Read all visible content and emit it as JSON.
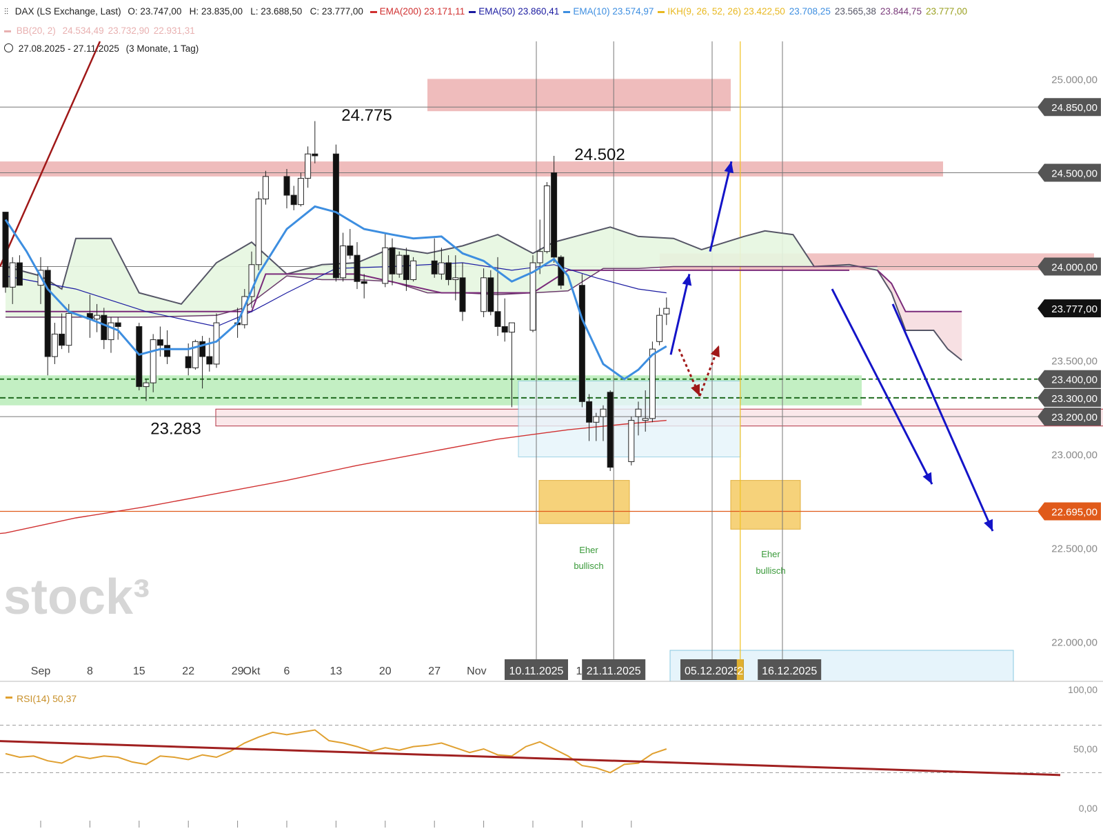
{
  "header": {
    "instrument": "DAX (LS Exchange, Last)",
    "ohlc": "O: 23.747,00   H: 23.835,00   L: 23.688,50   C: 23.777,00",
    "indicators": [
      {
        "label": "EMA(200)",
        "value": "23.171,11",
        "color": "#d03030"
      },
      {
        "label": "EMA(50)",
        "value": "23.860,41",
        "color": "#1a1aa0"
      },
      {
        "label": "EMA(10)",
        "value": "23.574,97",
        "color": "#3d8ee0"
      },
      {
        "label": "IKH(9, 26, 52, 26)",
        "value": "23.422,50",
        "color": "#e8b820"
      }
    ],
    "ikh_extra": [
      "23.708,25",
      "23.565,38",
      "23.844,75",
      "23.777,00"
    ],
    "ikh_extra_colors": [
      "#3d8ee0",
      "#555566",
      "#7a3a7a",
      "#9aa020"
    ],
    "bb_label": "BB(20, 2)",
    "bb_values": [
      "24.534,49",
      "23.732,90",
      "22.931,31"
    ],
    "bb_color": "#e8b0b0",
    "period": "27.08.2025 - 27.11.2025",
    "period_note": "(3 Monate, 1 Tag)"
  },
  "colors": {
    "candle_up_fill": "#ffffff",
    "candle_down_fill": "#111111",
    "ema10": "#3d8ee0",
    "ema50": "#1a1aa0",
    "ema200": "#d03030",
    "resistance_zone": "#efbcbc",
    "support_zone": "#b8ecb8",
    "target_zone": "#f6d27a",
    "fib_box": "#e6f4fb",
    "arrow_blue": "#1414c8",
    "arrow_red": "#a01818",
    "rsi_line": "#e0a030",
    "rsi_trend": "#a02020",
    "price_badge": "#555555",
    "current_badge": "#111111",
    "low_badge": "#e05a1a"
  },
  "price_axis": {
    "ticks": [
      "25.000,00",
      "22.500,00",
      "22.000,00"
    ],
    "tick_values": [
      25000,
      22500,
      22000
    ],
    "badges": [
      {
        "label": "24.850,00",
        "value": 24850,
        "kind": "level"
      },
      {
        "label": "24.500,00",
        "value": 24500,
        "kind": "level"
      },
      {
        "label": "24.000,00",
        "value": 24000,
        "kind": "level"
      },
      {
        "label": "23.777,00",
        "value": 23777,
        "kind": "current"
      },
      {
        "label": "23.500,00",
        "value": 23500,
        "kind": "plain"
      },
      {
        "label": "23.400,00",
        "value": 23400,
        "kind": "level"
      },
      {
        "label": "23.300,00",
        "value": 23300,
        "kind": "level"
      },
      {
        "label": "23.200,00",
        "value": 23200,
        "kind": "level"
      },
      {
        "label": "23.000,00",
        "value": 23000,
        "kind": "plain"
      },
      {
        "label": "22.695,00",
        "value": 22695,
        "kind": "low"
      }
    ]
  },
  "time_axis": {
    "labels": [
      "Sep",
      "8",
      "15",
      "22",
      "29",
      "Okt",
      "6",
      "13",
      "20",
      "27",
      "Nov",
      "17"
    ],
    "label_days": [
      5,
      12,
      19,
      26,
      33,
      35,
      40,
      47,
      54,
      61,
      67,
      82
    ],
    "date_badges": [
      {
        "label": "10.11.2025",
        "day": 75
      },
      {
        "label": "21.11.2025",
        "day": 86
      },
      {
        "label": "05.12.2025",
        "day": 100
      },
      {
        "label": "2",
        "day": 104
      },
      {
        "label": "16.12.2025",
        "day": 111
      }
    ]
  },
  "annotations": {
    "high_label": "24.775",
    "high_day": 45,
    "high_value": 24800,
    "second_high_label": "24.502",
    "second_high_day": 83,
    "second_high_value": 24590,
    "low_label": "23.283",
    "low_day": 22,
    "low_value": 23150,
    "watermark": "stock³",
    "note1": [
      "Eher",
      "bullisch"
    ],
    "note2": [
      "Eher",
      "bullisch"
    ]
  },
  "chart_data": {
    "type": "candlestick",
    "title": "DAX (LS Exchange, Last)",
    "period": "27.08.2025 - 27.11.2025",
    "x_unit": "calendar day offset from 27.08.2025",
    "y_range": [
      21800,
      25200
    ],
    "candles": [
      {
        "day": 0,
        "o": 24290,
        "h": 24290,
        "l": 23860,
        "c": 23890
      },
      {
        "day": 1,
        "o": 23890,
        "h": 24050,
        "l": 23800,
        "c": 24020
      },
      {
        "day": 2,
        "o": 24020,
        "h": 24060,
        "l": 23900,
        "c": 23900
      },
      {
        "day": 5,
        "o": 23900,
        "h": 24050,
        "l": 23800,
        "c": 23980
      },
      {
        "day": 6,
        "o": 23980,
        "h": 24000,
        "l": 23420,
        "c": 23520
      },
      {
        "day": 7,
        "o": 23520,
        "h": 23700,
        "l": 23480,
        "c": 23640
      },
      {
        "day": 8,
        "o": 23640,
        "h": 23750,
        "l": 23560,
        "c": 23580
      },
      {
        "day": 9,
        "o": 23580,
        "h": 23800,
        "l": 23540,
        "c": 23750
      },
      {
        "day": 12,
        "o": 23750,
        "h": 23850,
        "l": 23620,
        "c": 23720
      },
      {
        "day": 13,
        "o": 23720,
        "h": 23800,
        "l": 23650,
        "c": 23740
      },
      {
        "day": 14,
        "o": 23740,
        "h": 23780,
        "l": 23560,
        "c": 23610
      },
      {
        "day": 15,
        "o": 23610,
        "h": 23730,
        "l": 23540,
        "c": 23700
      },
      {
        "day": 16,
        "o": 23700,
        "h": 23730,
        "l": 23610,
        "c": 23680
      },
      {
        "day": 19,
        "o": 23680,
        "h": 23700,
        "l": 23340,
        "c": 23360
      },
      {
        "day": 20,
        "o": 23360,
        "h": 23400,
        "l": 23283,
        "c": 23380
      },
      {
        "day": 21,
        "o": 23380,
        "h": 23640,
        "l": 23330,
        "c": 23610
      },
      {
        "day": 22,
        "o": 23610,
        "h": 23680,
        "l": 23520,
        "c": 23580
      },
      {
        "day": 23,
        "o": 23580,
        "h": 23660,
        "l": 23480,
        "c": 23520
      },
      {
        "day": 26,
        "o": 23520,
        "h": 23590,
        "l": 23420,
        "c": 23460
      },
      {
        "day": 27,
        "o": 23460,
        "h": 23610,
        "l": 23450,
        "c": 23600
      },
      {
        "day": 28,
        "o": 23600,
        "h": 23630,
        "l": 23350,
        "c": 23520
      },
      {
        "day": 29,
        "o": 23520,
        "h": 23620,
        "l": 23440,
        "c": 23480
      },
      {
        "day": 30,
        "o": 23480,
        "h": 23750,
        "l": 23460,
        "c": 23700
      },
      {
        "day": 33,
        "o": 23700,
        "h": 23780,
        "l": 23620,
        "c": 23690
      },
      {
        "day": 34,
        "o": 23690,
        "h": 23880,
        "l": 23670,
        "c": 23840
      },
      {
        "day": 35,
        "o": 23840,
        "h": 24080,
        "l": 23780,
        "c": 24010
      },
      {
        "day": 36,
        "o": 24010,
        "h": 24400,
        "l": 23980,
        "c": 24360
      },
      {
        "day": 37,
        "o": 24360,
        "h": 24510,
        "l": 24330,
        "c": 24480
      },
      {
        "day": 40,
        "o": 24480,
        "h": 24520,
        "l": 24310,
        "c": 24380
      },
      {
        "day": 41,
        "o": 24380,
        "h": 24430,
        "l": 24300,
        "c": 24330
      },
      {
        "day": 42,
        "o": 24330,
        "h": 24500,
        "l": 24320,
        "c": 24470
      },
      {
        "day": 43,
        "o": 24470,
        "h": 24640,
        "l": 24420,
        "c": 24600
      },
      {
        "day": 44,
        "o": 24600,
        "h": 24775,
        "l": 24550,
        "c": 24590
      },
      {
        "day": 47,
        "o": 24600,
        "h": 24650,
        "l": 23920,
        "c": 23940
      },
      {
        "day": 48,
        "o": 23940,
        "h": 24180,
        "l": 23920,
        "c": 24110
      },
      {
        "day": 49,
        "o": 24110,
        "h": 24200,
        "l": 24040,
        "c": 24060
      },
      {
        "day": 50,
        "o": 24060,
        "h": 24130,
        "l": 23880,
        "c": 23920
      },
      {
        "day": 51,
        "o": 23920,
        "h": 23960,
        "l": 23830,
        "c": 23910
      },
      {
        "day": 54,
        "o": 23910,
        "h": 24180,
        "l": 23890,
        "c": 24100
      },
      {
        "day": 55,
        "o": 24100,
        "h": 24150,
        "l": 23900,
        "c": 23960
      },
      {
        "day": 56,
        "o": 23960,
        "h": 24080,
        "l": 23940,
        "c": 24060
      },
      {
        "day": 57,
        "o": 24060,
        "h": 24100,
        "l": 23870,
        "c": 23930
      },
      {
        "day": 58,
        "o": 23930,
        "h": 24050,
        "l": 23920,
        "c": 24030
      },
      {
        "day": 61,
        "o": 24030,
        "h": 24150,
        "l": 23940,
        "c": 23960
      },
      {
        "day": 62,
        "o": 23960,
        "h": 24100,
        "l": 23930,
        "c": 24020
      },
      {
        "day": 63,
        "o": 24020,
        "h": 24060,
        "l": 23900,
        "c": 23930
      },
      {
        "day": 64,
        "o": 23930,
        "h": 24060,
        "l": 23820,
        "c": 23940
      },
      {
        "day": 65,
        "o": 23940,
        "h": 24020,
        "l": 23710,
        "c": 23760
      },
      {
        "day": 68,
        "o": 23760,
        "h": 23990,
        "l": 23730,
        "c": 23940
      },
      {
        "day": 69,
        "o": 23940,
        "h": 23980,
        "l": 23740,
        "c": 23760
      },
      {
        "day": 70,
        "o": 23760,
        "h": 24050,
        "l": 23630,
        "c": 23680
      },
      {
        "day": 71,
        "o": 23680,
        "h": 23830,
        "l": 23600,
        "c": 23650
      },
      {
        "day": 72,
        "o": 23650,
        "h": 23700,
        "l": 23250,
        "c": 23700
      },
      {
        "day": 75,
        "o": 23660,
        "h": 24060,
        "l": 23650,
        "c": 24020
      },
      {
        "day": 76,
        "o": 24020,
        "h": 24250,
        "l": 23960,
        "c": 24080
      },
      {
        "day": 77,
        "o": 24080,
        "h": 24450,
        "l": 24070,
        "c": 24430
      },
      {
        "day": 78,
        "o": 24500,
        "h": 24590,
        "l": 24020,
        "c": 24050
      },
      {
        "day": 79,
        "o": 24050,
        "h": 24060,
        "l": 23880,
        "c": 23900
      },
      {
        "day": 82,
        "o": 23900,
        "h": 23960,
        "l": 23250,
        "c": 23280
      },
      {
        "day": 83,
        "o": 23280,
        "h": 23320,
        "l": 23070,
        "c": 23170
      },
      {
        "day": 84,
        "o": 23170,
        "h": 23220,
        "l": 23070,
        "c": 23200
      },
      {
        "day": 85,
        "o": 23200,
        "h": 23260,
        "l": 23070,
        "c": 23240
      },
      {
        "day": 86,
        "o": 23330,
        "h": 23340,
        "l": 22910,
        "c": 22930
      },
      {
        "day": 89,
        "o": 22960,
        "h": 23200,
        "l": 22940,
        "c": 23180
      },
      {
        "day": 90,
        "o": 23200,
        "h": 23280,
        "l": 23100,
        "c": 23240
      },
      {
        "day": 91,
        "o": 23180,
        "h": 23340,
        "l": 23120,
        "c": 23190
      },
      {
        "day": 92,
        "o": 23190,
        "h": 23600,
        "l": 23170,
        "c": 23560
      },
      {
        "day": 93,
        "o": 23600,
        "h": 23780,
        "l": 23580,
        "c": 23740
      },
      {
        "day": 94,
        "o": 23747,
        "h": 23835,
        "l": 23688,
        "c": 23777
      }
    ],
    "ema10": [
      [
        0,
        24250
      ],
      [
        3,
        24080
      ],
      [
        6,
        23880
      ],
      [
        9,
        23760
      ],
      [
        12,
        23720
      ],
      [
        16,
        23660
      ],
      [
        19,
        23530
      ],
      [
        22,
        23560
      ],
      [
        26,
        23560
      ],
      [
        30,
        23600
      ],
      [
        33,
        23700
      ],
      [
        36,
        23960
      ],
      [
        40,
        24200
      ],
      [
        44,
        24320
      ],
      [
        47,
        24290
      ],
      [
        51,
        24200
      ],
      [
        55,
        24170
      ],
      [
        58,
        24150
      ],
      [
        62,
        24160
      ],
      [
        65,
        24070
      ],
      [
        68,
        24030
      ],
      [
        72,
        23920
      ],
      [
        75,
        23970
      ],
      [
        78,
        24040
      ],
      [
        80,
        23950
      ],
      [
        82,
        23720
      ],
      [
        85,
        23480
      ],
      [
        88,
        23400
      ],
      [
        90,
        23450
      ],
      [
        92,
        23530
      ],
      [
        94,
        23575
      ]
    ],
    "ema50": [
      [
        0,
        23950
      ],
      [
        10,
        23880
      ],
      [
        20,
        23760
      ],
      [
        30,
        23680
      ],
      [
        35,
        23760
      ],
      [
        40,
        23860
      ],
      [
        47,
        23990
      ],
      [
        55,
        24000
      ],
      [
        65,
        24020
      ],
      [
        72,
        23980
      ],
      [
        78,
        24010
      ],
      [
        84,
        23940
      ],
      [
        90,
        23880
      ],
      [
        94,
        23860
      ]
    ],
    "ema200": [
      [
        -8,
        22550
      ],
      [
        0,
        22580
      ],
      [
        10,
        22660
      ],
      [
        20,
        22720
      ],
      [
        30,
        22790
      ],
      [
        40,
        22860
      ],
      [
        50,
        22940
      ],
      [
        60,
        23010
      ],
      [
        70,
        23080
      ],
      [
        80,
        23130
      ],
      [
        88,
        23160
      ],
      [
        94,
        23180
      ]
    ],
    "ikh_span_a": [
      [
        0,
        24000
      ],
      [
        5,
        23950
      ],
      [
        8,
        23880
      ],
      [
        10,
        24150
      ],
      [
        15,
        24150
      ],
      [
        19,
        23860
      ],
      [
        25,
        23800
      ],
      [
        30,
        24020
      ],
      [
        35,
        24130
      ],
      [
        40,
        23960
      ],
      [
        45,
        24010
      ],
      [
        50,
        24020
      ],
      [
        55,
        24100
      ],
      [
        60,
        24070
      ],
      [
        65,
        24110
      ],
      [
        70,
        24170
      ],
      [
        75,
        24070
      ],
      [
        78,
        24130
      ],
      [
        82,
        24170
      ],
      [
        86,
        24210
      ],
      [
        90,
        24160
      ],
      [
        95,
        24150
      ],
      [
        99,
        24090
      ],
      [
        105,
        24160
      ],
      [
        108,
        24190
      ],
      [
        112,
        24170
      ],
      [
        115,
        24000
      ],
      [
        120,
        24010
      ],
      [
        124,
        23980
      ]
    ],
    "ikh_span_b": [
      [
        0,
        23730
      ],
      [
        10,
        23730
      ],
      [
        20,
        23730
      ],
      [
        30,
        23740
      ],
      [
        34,
        23780
      ],
      [
        40,
        23950
      ],
      [
        45,
        23930
      ],
      [
        50,
        23930
      ],
      [
        55,
        23920
      ],
      [
        60,
        23860
      ],
      [
        65,
        23860
      ],
      [
        70,
        23850
      ],
      [
        75,
        23860
      ],
      [
        80,
        23870
      ],
      [
        85,
        23990
      ],
      [
        90,
        23990
      ],
      [
        95,
        24000
      ],
      [
        100,
        24000
      ],
      [
        105,
        24000
      ],
      [
        110,
        24000
      ],
      [
        114,
        24000
      ],
      [
        118,
        24000
      ],
      [
        121,
        24000
      ],
      [
        124,
        24000
      ]
    ],
    "ikh_span_a_future": [
      [
        124,
        23980
      ],
      [
        126,
        23860
      ],
      [
        128,
        23660
      ],
      [
        132,
        23660
      ],
      [
        134,
        23560
      ],
      [
        136,
        23500
      ]
    ],
    "ikh_span_b_future": [
      [
        124,
        23980
      ],
      [
        126,
        23910
      ],
      [
        128,
        23760
      ],
      [
        136,
        23760
      ],
      [
        136,
        23760
      ]
    ],
    "kijun": [
      [
        0,
        23760
      ],
      [
        35,
        23760
      ],
      [
        37,
        23960
      ],
      [
        50,
        23960
      ],
      [
        62,
        23860
      ],
      [
        70,
        23860
      ],
      [
        75,
        23860
      ],
      [
        80,
        23980
      ],
      [
        120,
        23980
      ]
    ],
    "rsi": [
      [
        0,
        46
      ],
      [
        2,
        43
      ],
      [
        4,
        44
      ],
      [
        6,
        40
      ],
      [
        8,
        38
      ],
      [
        10,
        44
      ],
      [
        12,
        42
      ],
      [
        14,
        44
      ],
      [
        16,
        43
      ],
      [
        18,
        39
      ],
      [
        20,
        37
      ],
      [
        22,
        44
      ],
      [
        24,
        43
      ],
      [
        26,
        41
      ],
      [
        28,
        45
      ],
      [
        30,
        43
      ],
      [
        32,
        48
      ],
      [
        34,
        55
      ],
      [
        36,
        60
      ],
      [
        38,
        64
      ],
      [
        40,
        62
      ],
      [
        42,
        64
      ],
      [
        44,
        66
      ],
      [
        46,
        57
      ],
      [
        48,
        55
      ],
      [
        50,
        52
      ],
      [
        52,
        48
      ],
      [
        54,
        51
      ],
      [
        56,
        49
      ],
      [
        58,
        52
      ],
      [
        60,
        53
      ],
      [
        62,
        55
      ],
      [
        64,
        51
      ],
      [
        66,
        47
      ],
      [
        68,
        50
      ],
      [
        70,
        45
      ],
      [
        72,
        44
      ],
      [
        74,
        52
      ],
      [
        76,
        56
      ],
      [
        78,
        50
      ],
      [
        80,
        44
      ],
      [
        82,
        36
      ],
      [
        84,
        34
      ],
      [
        86,
        30
      ],
      [
        88,
        37
      ],
      [
        90,
        38
      ],
      [
        92,
        46
      ],
      [
        94,
        50
      ]
    ],
    "rsi_trend": [
      [
        -8,
        58
      ],
      [
        150,
        28
      ]
    ],
    "rsi_levels": [
      70,
      30
    ],
    "rsi_axis": [
      "100,00",
      "50,00",
      "0,00"
    ],
    "rsi_label": "RSI(14)",
    "rsi_value": "50,37"
  }
}
